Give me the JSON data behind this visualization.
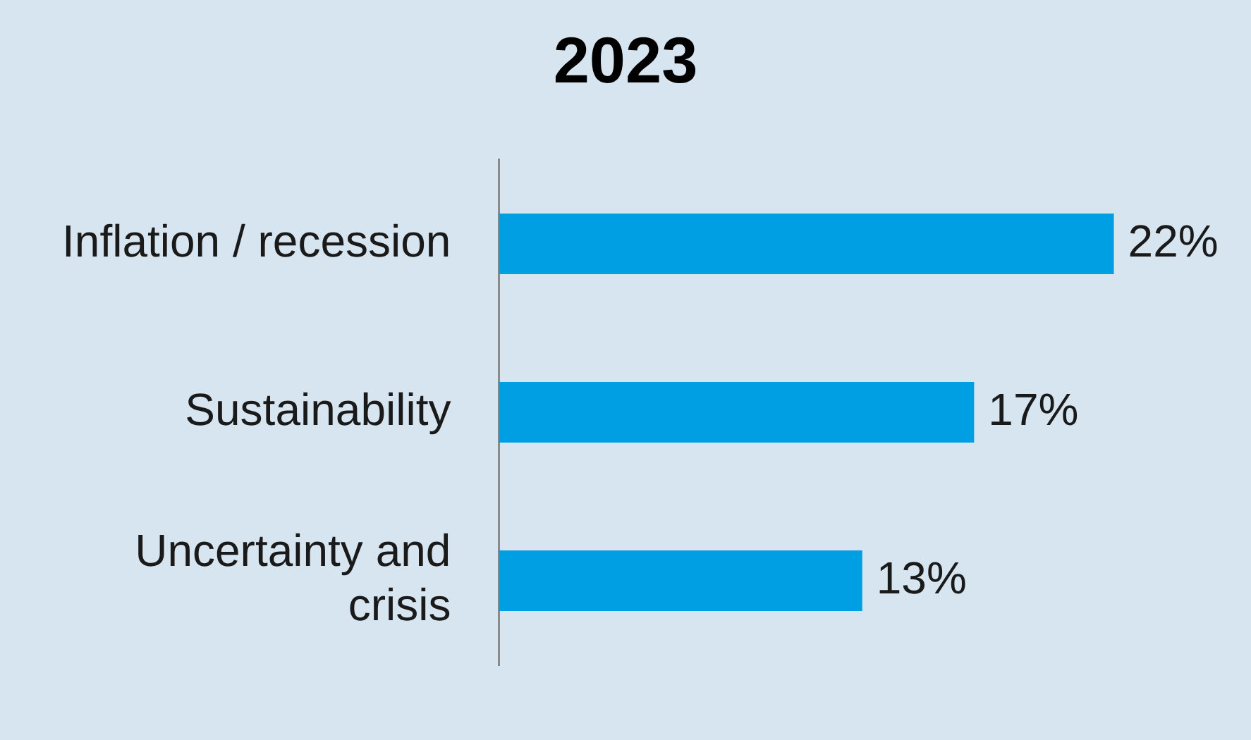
{
  "chart_data": {
    "type": "bar",
    "orientation": "horizontal",
    "title": "2023",
    "categories": [
      "Inflation / recession",
      "Sustainability",
      "Uncertainty and crisis"
    ],
    "values": [
      22,
      17,
      13
    ],
    "value_labels": [
      "22%",
      "17%",
      "13%"
    ],
    "color": "#009fe3",
    "tick_labels": "y"
  }
}
